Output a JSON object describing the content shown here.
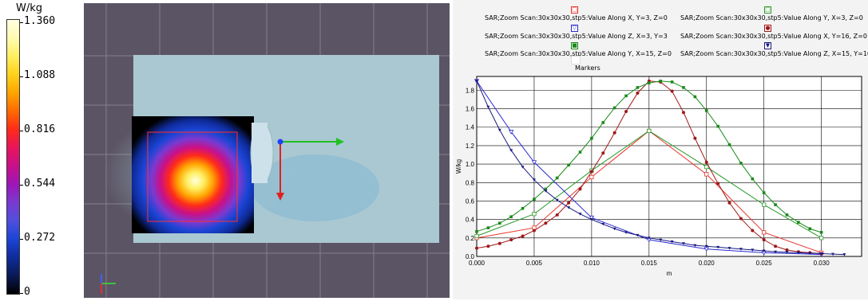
{
  "colorbar": {
    "unit": "W/kg",
    "ticks": [
      "1.360",
      "1.088",
      "0.816",
      "0.544",
      "0.272",
      "0"
    ],
    "colors": [
      "#000000",
      "#0a1a55",
      "#0f2b9a",
      "#1b45d6",
      "#4f4fdc",
      "#7a3ad0",
      "#9c16b8",
      "#c8108a",
      "#e8145a",
      "#ff2a1a",
      "#ff6a00",
      "#ffa400",
      "#ffd21a",
      "#ffee60",
      "#fffbb0",
      "#ffffe0"
    ]
  },
  "scan_view": {
    "background": "#5b5464",
    "phantom_color": "#a9c8d2"
  },
  "chart_data": {
    "type": "line",
    "xlabel": "m",
    "ylabel": "W/kg",
    "xlim": [
      0,
      0.0335
    ],
    "ylim": [
      0,
      1.95
    ],
    "xticks": [
      "0.000",
      "0.005",
      "0.010",
      "0.015",
      "0.020",
      "0.025",
      "0.030"
    ],
    "yticks": [
      "0.0",
      "0.2",
      "0.4",
      "0.6",
      "0.8",
      "1.0",
      "1.2",
      "1.4",
      "1.6",
      "1.8"
    ],
    "grid": true,
    "legend_position": "top",
    "legend_extra": "Markers",
    "series": [
      {
        "name": "SAR;Zoom Scan:30x30x30,stp5:Value Along X, Y=3, Z=0",
        "color": "#e8322a",
        "marker": "square-open",
        "x": [
          0,
          0.005,
          0.01,
          0.015,
          0.02,
          0.025,
          0.03
        ],
        "y": [
          0.2,
          0.31,
          0.86,
          1.36,
          0.89,
          0.26,
          0.04
        ]
      },
      {
        "name": "SAR;Zoom Scan:30x30x30,stp5:Value Along Y, X=3, Z=0",
        "color": "#2a9a2a",
        "marker": "square-open",
        "x": [
          0,
          0.005,
          0.01,
          0.015,
          0.02,
          0.025,
          0.03
        ],
        "y": [
          0.22,
          0.46,
          0.93,
          1.36,
          0.97,
          0.56,
          0.2
        ]
      },
      {
        "name": "SAR;Zoom Scan:30x30x30,stp5:Value Along Z, X=3, Y=3",
        "color": "#2a2ad0",
        "marker": "triangle-open",
        "x": [
          0,
          0.003,
          0.005,
          0.01,
          0.015,
          0.02,
          0.025,
          0.03
        ],
        "y": [
          1.9,
          1.35,
          1.02,
          0.42,
          0.18,
          0.08,
          0.04,
          0.02
        ]
      },
      {
        "name": "SAR;Zoom Scan:30x30x30,stp5:Value Along X, Y=16, Z=0",
        "color": "#a01818",
        "marker": "circle",
        "x": [
          0,
          0.001,
          0.002,
          0.003,
          0.004,
          0.005,
          0.006,
          0.007,
          0.008,
          0.009,
          0.01,
          0.011,
          0.012,
          0.013,
          0.014,
          0.015,
          0.016,
          0.017,
          0.018,
          0.019,
          0.02,
          0.021,
          0.022,
          0.023,
          0.024,
          0.025,
          0.026,
          0.027,
          0.028,
          0.029,
          0.03
        ],
        "y": [
          0.09,
          0.11,
          0.14,
          0.18,
          0.22,
          0.28,
          0.36,
          0.45,
          0.58,
          0.73,
          0.92,
          1.12,
          1.34,
          1.57,
          1.77,
          1.9,
          1.89,
          1.79,
          1.56,
          1.28,
          1.02,
          0.79,
          0.58,
          0.41,
          0.28,
          0.18,
          0.11,
          0.07,
          0.05,
          0.04,
          0.03
        ]
      },
      {
        "name": "SAR;Zoom Scan:30x30x30,stp5:Value Along Y, X=15, Z=0",
        "color": "#1a8a1a",
        "marker": "square",
        "x": [
          0,
          0.001,
          0.002,
          0.003,
          0.004,
          0.005,
          0.006,
          0.007,
          0.008,
          0.009,
          0.01,
          0.011,
          0.012,
          0.013,
          0.014,
          0.015,
          0.016,
          0.017,
          0.018,
          0.019,
          0.02,
          0.021,
          0.022,
          0.023,
          0.024,
          0.025,
          0.026,
          0.027,
          0.028,
          0.029,
          0.03
        ],
        "y": [
          0.27,
          0.31,
          0.36,
          0.43,
          0.52,
          0.62,
          0.73,
          0.85,
          0.99,
          1.13,
          1.28,
          1.45,
          1.61,
          1.74,
          1.83,
          1.88,
          1.9,
          1.89,
          1.83,
          1.73,
          1.58,
          1.41,
          1.21,
          1.01,
          0.84,
          0.69,
          0.56,
          0.45,
          0.37,
          0.3,
          0.26
        ]
      },
      {
        "name": "SAR;Zoom Scan:30x30x30,stp5:Value Along Z, X=15, Y=16",
        "color": "#1a1a80",
        "marker": "triangle",
        "x": [
          0,
          0.001,
          0.002,
          0.003,
          0.004,
          0.005,
          0.006,
          0.007,
          0.008,
          0.009,
          0.01,
          0.011,
          0.012,
          0.013,
          0.014,
          0.015,
          0.016,
          0.017,
          0.018,
          0.019,
          0.02,
          0.021,
          0.022,
          0.023,
          0.024,
          0.025,
          0.026,
          0.027,
          0.028,
          0.029,
          0.03,
          0.031,
          0.032
        ],
        "y": [
          1.9,
          1.62,
          1.37,
          1.15,
          0.97,
          0.83,
          0.71,
          0.61,
          0.53,
          0.46,
          0.4,
          0.35,
          0.3,
          0.26,
          0.23,
          0.2,
          0.18,
          0.16,
          0.14,
          0.12,
          0.11,
          0.1,
          0.09,
          0.08,
          0.07,
          0.06,
          0.05,
          0.045,
          0.04,
          0.035,
          0.03,
          0.025,
          0.02
        ]
      }
    ]
  }
}
